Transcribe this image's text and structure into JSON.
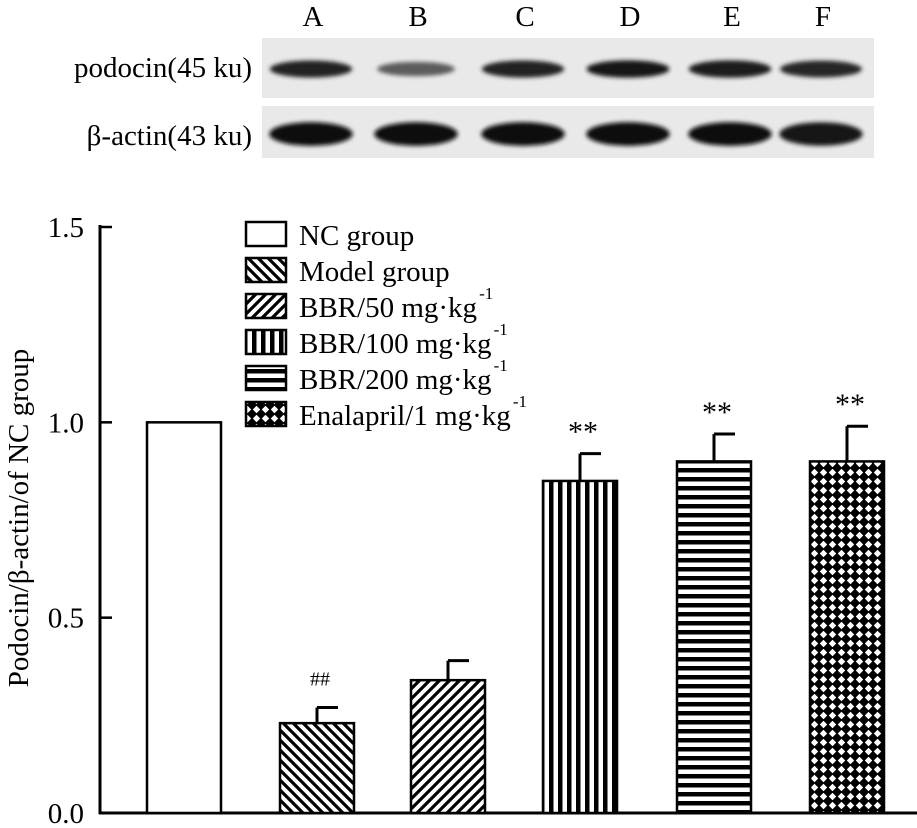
{
  "blot": {
    "lane_labels": [
      "A",
      "B",
      "C",
      "D",
      "E",
      "F"
    ],
    "row_labels": [
      "podocin(45 ku)",
      "β-actin(43 ku)"
    ],
    "podocin_band_intensity": [
      0.88,
      0.55,
      0.88,
      0.92,
      0.9,
      0.85
    ],
    "actin_band_intensity": [
      0.97,
      0.97,
      0.97,
      0.97,
      0.97,
      0.95
    ]
  },
  "chart_data": {
    "type": "bar",
    "ylabel": "Podocin/β-actin/of NC group",
    "ylim": [
      0,
      1.5
    ],
    "yticks": [
      "0.0",
      "0.5",
      "1.0",
      "1.5"
    ],
    "categories": [
      "NC group",
      "Model group",
      "BBR/50 mg·kg-1",
      "BBR/100 mg·kg-1",
      "BBR/200 mg·kg-1",
      "Enalapril/1 mg·kg-1"
    ],
    "values": [
      1.0,
      0.23,
      0.34,
      0.85,
      0.9,
      0.9
    ],
    "errors": [
      0.0,
      0.04,
      0.05,
      0.07,
      0.07,
      0.09
    ],
    "significance": [
      "",
      "##",
      "",
      "**",
      "**",
      "**"
    ],
    "patterns": [
      "blank",
      "hatch-back",
      "hatch-fwd",
      "vlines",
      "hlines",
      "crosshatch"
    ],
    "legend": {
      "position": "top-left",
      "entries": [
        {
          "text": "NC group",
          "sup": ""
        },
        {
          "text": "Model group",
          "sup": ""
        },
        {
          "text": "BBR/50 mg·kg",
          "sup": "-1"
        },
        {
          "text": "BBR/100 mg·kg",
          "sup": "-1"
        },
        {
          "text": "BBR/200 mg·kg",
          "sup": "-1"
        },
        {
          "text": "Enalapril/1 mg·kg",
          "sup": "-1"
        }
      ]
    }
  }
}
